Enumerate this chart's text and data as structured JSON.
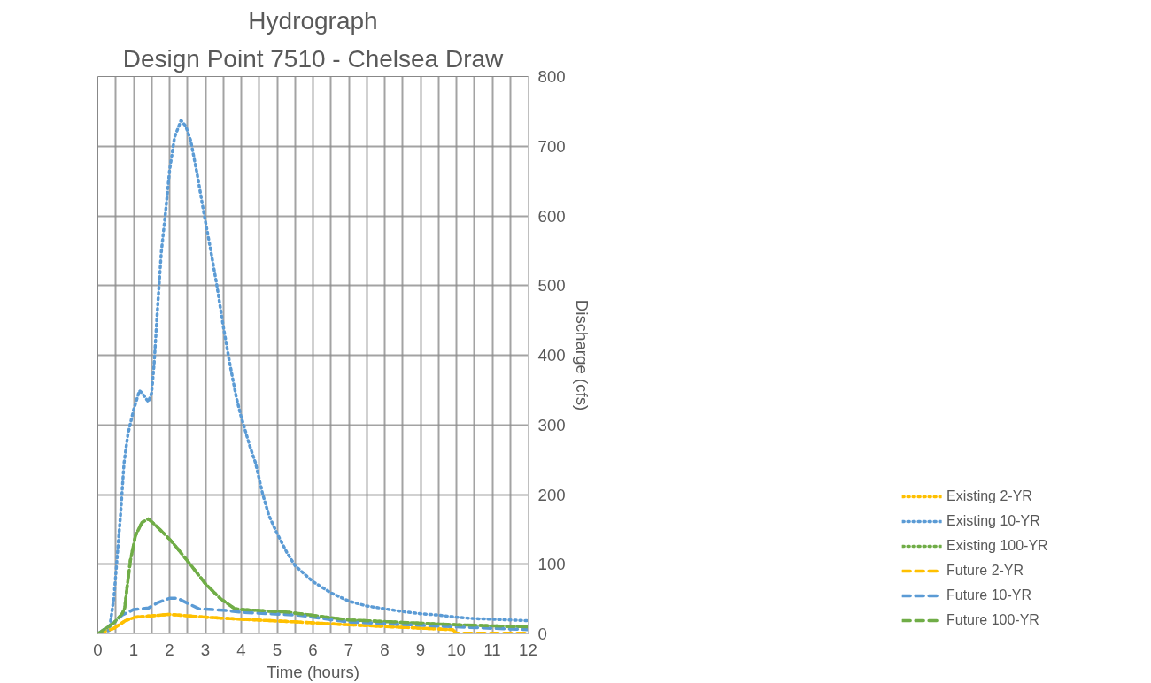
{
  "chart_data": {
    "type": "line",
    "title": "Hydrograph",
    "subtitle": "Design Point 7510 - Chelsea Draw",
    "xlabel": "Time (hours)",
    "ylabel": "Discharge (cfs)",
    "xlim": [
      0,
      12
    ],
    "xticks": [
      0,
      {
        "value": 0.5,
        "label": null
      },
      1,
      {
        "value": 1.5,
        "label": null
      },
      2,
      {
        "value": 2.5,
        "label": null
      },
      3,
      {
        "value": 3.5,
        "label": null
      },
      4,
      {
        "value": 4.5,
        "label": null
      },
      5,
      {
        "value": 5.5,
        "label": null
      },
      6,
      {
        "value": 6.5,
        "label": null
      },
      7,
      {
        "value": 7.5,
        "label": null
      },
      8,
      {
        "value": 8.5,
        "label": null
      },
      9,
      {
        "value": 9.5,
        "label": null
      },
      10,
      {
        "value": 10.5,
        "label": null
      },
      11,
      {
        "value": 11.5,
        "label": null
      },
      12
    ],
    "ylim": [
      0,
      800
    ],
    "yticks": [
      0,
      100,
      200,
      300,
      400,
      500,
      600,
      700,
      800
    ],
    "grid": true,
    "legend": "right",
    "marker": "none",
    "series": [
      {
        "name": "Existing 2-YR",
        "color": "#ffc000",
        "line_style": "dotted",
        "x": [
          0,
          0.45,
          0.77,
          1.05,
          2.0,
          3,
          4,
          5.59,
          7,
          9.9
        ],
        "values": [
          0,
          8,
          19,
          24,
          28,
          24,
          21,
          17,
          13,
          6
        ]
      },
      {
        "name": "Existing 10-YR",
        "color": "#5b9bd5",
        "line_style": "dotted",
        "x": [
          0,
          0.32,
          0.45,
          0.55,
          0.64,
          0.73,
          0.84,
          1.0,
          1.16,
          1.23,
          1.41,
          1.5,
          1.57,
          1.66,
          1.77,
          1.89,
          2.0,
          2.14,
          2.32,
          2.45,
          2.59,
          2.77,
          2.95,
          3.14,
          3.32,
          3.5,
          3.68,
          3.86,
          3.99,
          4.23,
          4.4,
          4.59,
          4.77,
          5.0,
          5.27,
          5.5,
          6,
          6.5,
          7,
          7.5,
          8,
          8.5,
          9,
          9.5,
          10,
          10.5,
          11,
          11.5,
          12
        ],
        "values": [
          0,
          5,
          53,
          117,
          176,
          245,
          287,
          322,
          349,
          346,
          333,
          346,
          388,
          463,
          548,
          606,
          665,
          713,
          737,
          729,
          708,
          660,
          606,
          553,
          500,
          441,
          388,
          340,
          313,
          271,
          245,
          202,
          170,
          144,
          117,
          98,
          75,
          59,
          47,
          40,
          36,
          32,
          29,
          27,
          24,
          22,
          21,
          20,
          19
        ]
      },
      {
        "name": "Existing 100-YR",
        "color": "#70ad47",
        "line_style": "dotted",
        "x": [
          0,
          0.23,
          0.45,
          0.68,
          0.75,
          0.82,
          0.91,
          1.05,
          1.23,
          1.41,
          1.59,
          2.0,
          2.23,
          2.59,
          3.0,
          3.41,
          3.82,
          4,
          5.33,
          7,
          10,
          12
        ],
        "values": [
          0,
          8,
          16,
          29,
          37,
          69,
          106,
          141,
          160,
          165,
          157,
          136,
          122,
          99,
          72,
          51,
          36,
          35,
          31,
          20,
          13,
          10
        ]
      },
      {
        "name": "Future 2-YR",
        "color": "#ffc000",
        "line_style": "dashed",
        "x": [
          0,
          0.45,
          0.77,
          1.05,
          2.0,
          3,
          4,
          5.59,
          7,
          9.9,
          10,
          12
        ],
        "values": [
          0,
          8,
          19,
          24,
          28,
          24,
          21,
          17,
          13,
          6,
          1,
          1
        ]
      },
      {
        "name": "Future 10-YR",
        "color": "#5b9bd5",
        "line_style": "dashed",
        "x": [
          0,
          0.45,
          0.68,
          1.0,
          1.41,
          1.68,
          2.0,
          2.23,
          2.5,
          2.82,
          3.5,
          4,
          5.59,
          7,
          10,
          12
        ],
        "values": [
          0,
          16,
          27,
          35,
          37,
          45,
          51,
          51,
          44,
          36,
          34,
          31,
          27,
          17,
          10,
          6
        ]
      },
      {
        "name": "Future 100-YR",
        "color": "#70ad47",
        "line_style": "dashed",
        "x": [
          0,
          0.23,
          0.45,
          0.68,
          0.75,
          0.82,
          0.91,
          1.05,
          1.23,
          1.41,
          1.59,
          2.0,
          2.23,
          2.59,
          3.0,
          3.41,
          3.82,
          4,
          5.33,
          7,
          10,
          12
        ],
        "values": [
          0,
          8,
          16,
          29,
          37,
          69,
          106,
          141,
          160,
          165,
          157,
          136,
          122,
          99,
          72,
          51,
          36,
          35,
          31,
          20,
          13,
          10
        ]
      }
    ]
  }
}
